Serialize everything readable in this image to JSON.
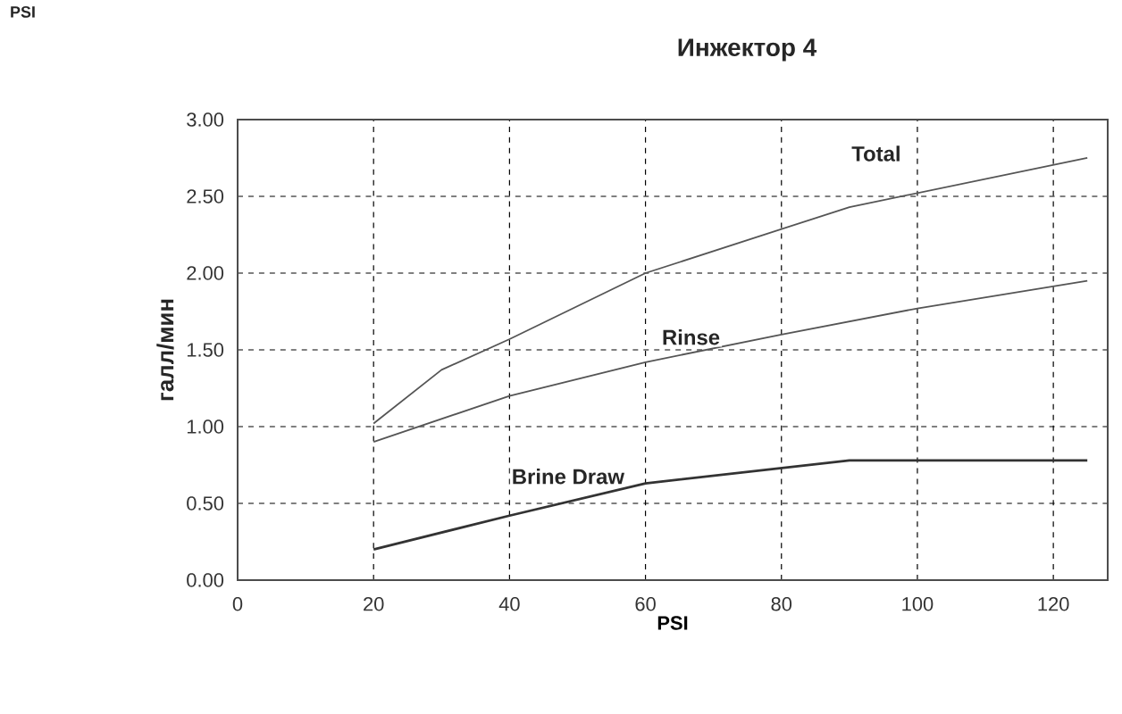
{
  "chart_data": {
    "type": "line",
    "title": "Инжектор 4",
    "xlabel": "PSI",
    "ylabel": "галл/мин",
    "series": [
      {
        "name": "Total",
        "color": "#555555",
        "x": [
          20,
          30,
          40,
          60,
          90,
          125
        ],
        "values": [
          1.02,
          1.37,
          1.57,
          2.0,
          2.43,
          2.75
        ]
      },
      {
        "name": "Rinse",
        "color": "#555555",
        "x": [
          20,
          40,
          60,
          80,
          100,
          125
        ],
        "values": [
          0.9,
          1.2,
          1.42,
          1.6,
          1.77,
          1.95
        ]
      },
      {
        "name": "Brine Draw",
        "color": "#333333",
        "x": [
          20,
          40,
          60,
          90,
          125
        ],
        "values": [
          0.2,
          0.42,
          0.63,
          0.78,
          0.78
        ]
      }
    ],
    "annotations": [
      "PSI"
    ],
    "xlim": [
      0,
      128
    ],
    "ylim": [
      0,
      3
    ],
    "xticks": [
      0,
      20,
      40,
      60,
      80,
      100,
      120
    ],
    "yticks": [
      {
        "value": 0,
        "label": "0.00"
      },
      {
        "value": 0.5,
        "label": "0.50"
      },
      {
        "value": 1,
        "label": "1.00"
      },
      {
        "value": 1.5,
        "label": "1.50"
      },
      {
        "value": 2,
        "label": "2.00"
      },
      {
        "value": 2.5,
        "label": "2.50"
      },
      {
        "value": 3,
        "label": "3.00"
      }
    ],
    "grid": true,
    "legend": false,
    "marker": "none",
    "line_style": "solid"
  }
}
